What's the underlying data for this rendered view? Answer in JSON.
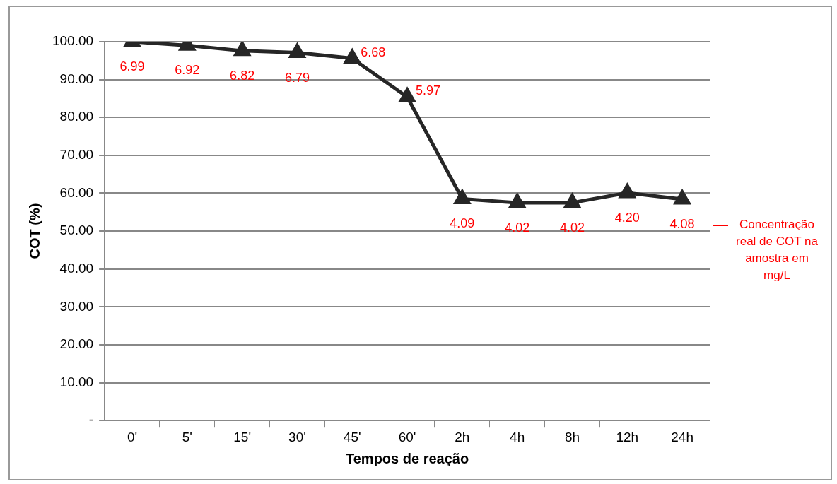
{
  "chart_data": {
    "type": "line",
    "xlabel": "Tempos de reação",
    "ylabel": "COT (%)",
    "categories": [
      "0'",
      "5'",
      "15'",
      "30'",
      "45'",
      "60'",
      "2h",
      "4h",
      "8h",
      "12h",
      "24h"
    ],
    "series": [
      {
        "color": "#262626",
        "values": [
          100,
          99.0,
          97.6,
          97.1,
          95.6,
          85.4,
          58.5,
          57.5,
          57.5,
          60.1,
          58.4
        ]
      }
    ],
    "ylim": [
      0,
      100
    ],
    "yticks": [
      {
        "value": 0,
        "label": "-"
      },
      {
        "value": 10,
        "label": "10.00"
      },
      {
        "value": 20,
        "label": "20.00"
      },
      {
        "value": 30,
        "label": "30.00"
      },
      {
        "value": 40,
        "label": "40.00"
      },
      {
        "value": 50,
        "label": "50.00"
      },
      {
        "value": 60,
        "label": "60.00"
      },
      {
        "value": 70,
        "label": "70.00"
      },
      {
        "value": 80,
        "label": "80.00"
      },
      {
        "value": 90,
        "label": "90.00"
      },
      {
        "value": 100,
        "label": "100.00"
      }
    ],
    "grid": "y",
    "marker": "triangle",
    "line_style": "solid",
    "annotations": [
      {
        "text": "6.99",
        "x": "0'",
        "y": 100
      },
      {
        "text": "6.92",
        "x": "5'",
        "y": 99.0
      },
      {
        "text": "6.82",
        "x": "15'",
        "y": 97.6
      },
      {
        "text": "6.79",
        "x": "30'",
        "y": 97.1
      },
      {
        "text": "6.68",
        "x": "45'",
        "y": 95.6
      },
      {
        "text": "5.97",
        "x": "60'",
        "y": 85.4
      },
      {
        "text": "4.09",
        "x": "2h",
        "y": 58.5
      },
      {
        "text": "4.02",
        "x": "4h",
        "y": 57.5
      },
      {
        "text": "4.02",
        "x": "8h",
        "y": 57.5
      },
      {
        "text": "4.20",
        "x": "12h",
        "y": 60.1
      },
      {
        "text": "4.08",
        "x": "24h",
        "y": 58.4
      },
      "Concentração real de COT na amostra em mg/L"
    ]
  }
}
